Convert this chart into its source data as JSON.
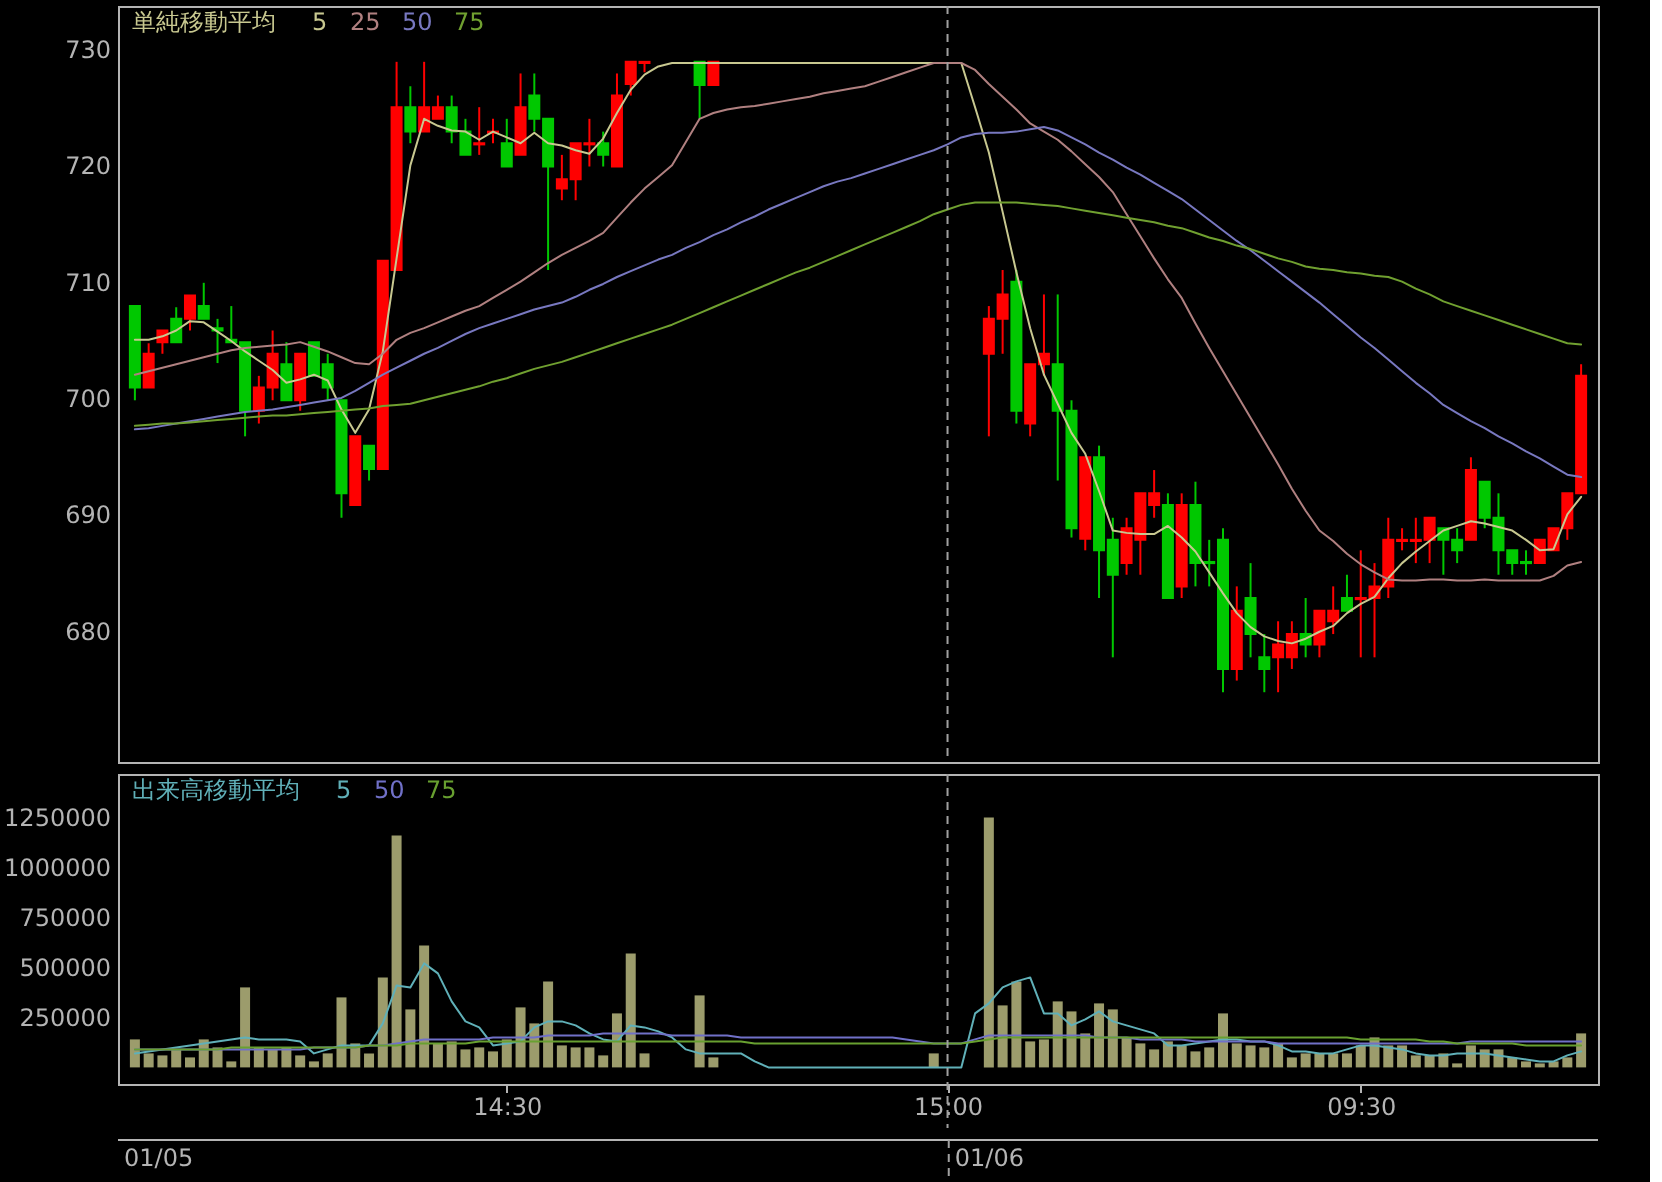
{
  "chart_data": [
    {
      "type": "candlestick",
      "categories": [
        null,
        null,
        null,
        null,
        null,
        null,
        null,
        null,
        null,
        null,
        null,
        null,
        null,
        null,
        null,
        null,
        null,
        null,
        null,
        null,
        null,
        null,
        null,
        null,
        null,
        null,
        null,
        "14:30",
        null,
        null,
        null,
        null,
        null,
        null,
        null,
        null,
        null,
        null,
        null,
        null,
        null,
        null,
        null,
        null,
        null,
        null,
        null,
        null,
        null,
        null,
        null,
        null,
        null,
        null,
        null,
        null,
        null,
        null,
        null,
        "15:00",
        null,
        null,
        null,
        null,
        null,
        null,
        null,
        null,
        null,
        null,
        null,
        null,
        null,
        null,
        null,
        null,
        null,
        null,
        null,
        null,
        null,
        null,
        null,
        null,
        null,
        null,
        null,
        null,
        null,
        "09:30",
        null,
        null,
        null,
        null,
        null,
        null,
        null,
        null,
        null,
        null,
        null,
        null,
        null,
        null,
        null,
        null
      ],
      "ohlc": [
        [
          707.9,
          707.9,
          699.8,
          700.9
        ],
        [
          700.9,
          704.7,
          700.9,
          703.8
        ],
        [
          704.8,
          705.8,
          703.8,
          705.8
        ],
        [
          706.8,
          707.8,
          704.8,
          704.8
        ],
        [
          706.8,
          708.8,
          705.8,
          708.8
        ],
        [
          707.9,
          709.9,
          706.8,
          706.8
        ],
        [
          706.0,
          706.8,
          703.0,
          705.8
        ],
        [
          705.0,
          707.9,
          704.8,
          704.8
        ],
        [
          704.8,
          704.8,
          696.7,
          698.9
        ],
        [
          698.9,
          701.9,
          697.8,
          700.9
        ],
        [
          700.9,
          705.8,
          699.8,
          703.8
        ],
        [
          702.9,
          704.8,
          699.8,
          699.8
        ],
        [
          699.8,
          703.8,
          698.9,
          703.8
        ],
        [
          704.8,
          704.8,
          701.9,
          701.9
        ],
        [
          702.9,
          703.8,
          699.8,
          700.9
        ],
        [
          699.8,
          699.8,
          689.7,
          691.8
        ],
        [
          690.8,
          696.7,
          690.8,
          696.7
        ],
        [
          695.9,
          695.9,
          692.9,
          693.9
        ],
        [
          693.9,
          711.8,
          693.9,
          711.8
        ],
        [
          711.0,
          728.9,
          711.0,
          725.0
        ],
        [
          725.0,
          726.8,
          721.9,
          722.9
        ],
        [
          722.9,
          728.9,
          722.9,
          725.0
        ],
        [
          724.0,
          726.0,
          724.0,
          725.0
        ],
        [
          725.0,
          726.0,
          721.9,
          722.9
        ],
        [
          722.9,
          724.0,
          720.9,
          720.9
        ],
        [
          721.8,
          725.0,
          720.9,
          721.9
        ],
        [
          722.8,
          724.0,
          721.9,
          722.9
        ],
        [
          721.9,
          724.0,
          719.9,
          719.9
        ],
        [
          720.9,
          727.9,
          720.9,
          725.0
        ],
        [
          726.0,
          727.9,
          722.9,
          724.0
        ],
        [
          724.0,
          724.0,
          711.0,
          719.9
        ],
        [
          718.0,
          720.9,
          717.0,
          718.8
        ],
        [
          718.8,
          721.9,
          717.0,
          721.9
        ],
        [
          721.8,
          724.0,
          719.9,
          721.9
        ],
        [
          721.9,
          722.9,
          719.9,
          720.9
        ],
        [
          719.9,
          727.9,
          719.9,
          726.0
        ],
        [
          727.0,
          728.9,
          726.0,
          728.9
        ],
        [
          728.8,
          728.9,
          728.0,
          728.9
        ],
        null,
        null,
        null,
        [
          728.9,
          728.9,
          724.0,
          726.9
        ],
        [
          726.9,
          728.9,
          726.9,
          728.9
        ],
        null,
        null,
        null,
        null,
        null,
        null,
        null,
        null,
        null,
        null,
        null,
        null,
        null,
        null,
        null,
        null,
        null,
        null,
        null,
        [
          703.8,
          707.9,
          696.7,
          706.8
        ],
        [
          706.8,
          711.0,
          703.8,
          708.9
        ],
        [
          710.0,
          711.0,
          697.8,
          698.9
        ],
        [
          697.8,
          702.9,
          696.7,
          702.9
        ],
        [
          702.9,
          708.9,
          701.9,
          703.8
        ],
        [
          702.9,
          708.9,
          692.9,
          698.9
        ],
        [
          698.9,
          699.8,
          688.0,
          688.8
        ],
        [
          687.9,
          694.9,
          686.9,
          694.9
        ],
        [
          694.9,
          695.9,
          682.8,
          686.9
        ],
        [
          687.8,
          689.7,
          677.7,
          684.8
        ],
        [
          685.8,
          689.7,
          684.8,
          688.8
        ],
        [
          687.8,
          691.8,
          684.8,
          691.8
        ],
        [
          690.8,
          693.8,
          689.7,
          691.8
        ],
        [
          690.8,
          691.8,
          682.8,
          682.8
        ],
        [
          683.8,
          691.8,
          682.8,
          690.8
        ],
        [
          690.8,
          692.8,
          683.8,
          685.8
        ],
        [
          685.9,
          687.8,
          683.8,
          685.8
        ],
        [
          687.8,
          688.8,
          674.7,
          676.7
        ],
        [
          676.7,
          683.8,
          675.7,
          681.7
        ],
        [
          682.8,
          685.8,
          677.7,
          679.7
        ],
        [
          677.7,
          679.7,
          674.7,
          676.7
        ],
        [
          677.7,
          680.8,
          674.7,
          678.8
        ],
        [
          677.7,
          680.8,
          676.7,
          679.7
        ],
        [
          679.7,
          682.8,
          677.7,
          678.8
        ],
        [
          678.8,
          681.7,
          677.7,
          681.7
        ],
        [
          680.8,
          683.8,
          679.7,
          681.7
        ],
        [
          682.8,
          684.8,
          681.7,
          681.7
        ],
        [
          682.7,
          686.9,
          677.7,
          682.8
        ],
        [
          682.8,
          685.8,
          677.7,
          683.8
        ],
        [
          683.8,
          689.7,
          682.8,
          687.8
        ],
        [
          687.7,
          688.8,
          686.9,
          687.8
        ],
        [
          687.7,
          689.7,
          685.8,
          687.8
        ],
        [
          687.8,
          689.7,
          685.8,
          689.7
        ],
        [
          688.8,
          688.8,
          684.8,
          687.8
        ],
        [
          687.8,
          688.8,
          685.8,
          686.9
        ],
        [
          687.8,
          694.9,
          687.8,
          693.8
        ],
        [
          692.8,
          692.8,
          688.8,
          689.7
        ],
        [
          689.7,
          691.8,
          684.8,
          686.9
        ],
        [
          686.9,
          686.9,
          684.8,
          685.8
        ],
        [
          685.9,
          686.9,
          684.8,
          685.8
        ],
        [
          685.8,
          687.8,
          685.8,
          687.8
        ],
        [
          686.9,
          688.8,
          686.9,
          688.8
        ],
        [
          688.8,
          691.8,
          687.8,
          691.8
        ],
        [
          691.8,
          702.9,
          691.8,
          701.9
        ]
      ],
      "colors": [
        "#00c800",
        "#ff0000",
        "#ff0000",
        "#00c800",
        "#ff0000",
        "#00c800",
        "#00c800",
        "#00c800",
        "#00c800",
        "#ff0000",
        "#ff0000",
        "#00c800",
        "#ff0000",
        "#00c800",
        "#00c800",
        "#00c800",
        "#ff0000",
        "#00c800",
        "#ff0000",
        "#ff0000",
        "#00c800",
        "#ff0000",
        "#ff0000",
        "#00c800",
        "#00c800",
        "#ff0000",
        "#ff0000",
        "#00c800",
        "#ff0000",
        "#00c800",
        "#00c800",
        "#ff0000",
        "#ff0000",
        "#ff0000",
        "#00c800",
        "#ff0000",
        "#ff0000",
        "#ff0000",
        null,
        null,
        null,
        "#00c800",
        "#ff0000",
        null,
        null,
        null,
        null,
        null,
        null,
        null,
        null,
        null,
        null,
        null,
        null,
        null,
        null,
        null,
        null,
        null,
        null,
        null,
        "#ff0000",
        "#ff0000",
        "#00c800",
        "#ff0000",
        "#ff0000",
        "#00c800",
        "#00c800",
        "#ff0000",
        "#00c800",
        "#00c800",
        "#ff0000",
        "#ff0000",
        "#ff0000",
        "#00c800",
        "#ff0000",
        "#00c800",
        "#00c800",
        "#00c800",
        "#ff0000",
        "#00c800",
        "#00c800",
        "#ff0000",
        "#ff0000",
        "#00c800",
        "#ff0000",
        "#ff0000",
        "#00c800",
        "#ff0000",
        "#ff0000",
        "#ff0000",
        "#ff0000",
        "#ff0000",
        "#ff0000",
        "#00c800",
        "#00c800",
        "#ff0000",
        "#00c800",
        "#00c800",
        "#00c800",
        "#00c800",
        "#ff0000",
        "#ff0000",
        "#ff0000",
        "#ff0000"
      ],
      "series": [
        {
          "name": "5",
          "type": "line",
          "color": "#c8c890",
          "values": [
            705.0,
            705.0,
            705.3,
            705.8,
            706.6,
            706.5,
            705.7,
            704.9,
            704.0,
            703.2,
            702.4,
            701.3,
            701.6,
            702.0,
            701.5,
            699.0,
            697.0,
            699.0,
            704.0,
            712.0,
            720.0,
            724.0,
            723.4,
            723.0,
            722.9,
            722.2,
            722.9,
            722.4,
            721.9,
            722.8,
            721.9,
            721.7,
            721.3,
            721.0,
            722.3,
            724.5,
            726.5,
            727.8,
            728.5,
            728.8,
            728.8,
            728.8,
            728.8,
            728.8,
            728.8,
            728.8,
            728.8,
            728.8,
            728.8,
            728.8,
            728.8,
            728.8,
            728.8,
            728.8,
            728.8,
            728.8,
            728.8,
            728.8,
            728.8,
            728.8,
            728.8,
            725.0,
            721.1,
            716.0,
            710.8,
            706.0,
            702.0,
            699.5,
            697.0,
            695.2,
            692.0,
            688.6,
            688.4,
            688.3,
            688.3,
            689.0,
            688.0,
            686.8,
            685.0,
            683.2,
            681.5,
            680.3,
            679.5,
            679.1,
            678.9,
            679.3,
            679.9,
            680.4,
            681.5,
            682.3,
            682.9,
            684.5,
            685.8,
            686.8,
            687.7,
            688.6,
            689.0,
            689.4,
            689.2,
            688.9,
            688.6,
            687.8,
            686.9,
            687.0,
            690.0,
            691.5
          ]
        },
        {
          "name": "25",
          "type": "line",
          "color": "#b08080",
          "values": [
            702.0,
            702.3,
            702.6,
            702.9,
            703.2,
            703.5,
            703.8,
            704.1,
            704.3,
            704.4,
            704.5,
            704.6,
            704.8,
            704.4,
            704.0,
            703.5,
            703.0,
            702.9,
            703.8,
            705.0,
            705.6,
            706.0,
            706.5,
            707.0,
            707.5,
            707.9,
            708.6,
            709.3,
            710.0,
            710.8,
            711.6,
            712.3,
            712.9,
            713.5,
            714.2,
            715.5,
            716.8,
            718.0,
            719.0,
            720.0,
            722.0,
            724.0,
            724.5,
            724.8,
            725.0,
            725.1,
            725.3,
            725.5,
            725.7,
            725.9,
            726.2,
            726.4,
            726.6,
            726.8,
            727.2,
            727.6,
            728.0,
            728.4,
            728.8,
            728.8,
            728.8,
            728.2,
            727.0,
            725.9,
            724.8,
            723.6,
            722.9,
            722.2,
            721.2,
            720.1,
            719.0,
            717.7,
            715.8,
            713.9,
            712.0,
            710.2,
            708.6,
            706.4,
            704.3,
            702.3,
            700.3,
            698.3,
            696.3,
            694.3,
            692.2,
            690.3,
            688.6,
            687.7,
            686.6,
            685.7,
            685.0,
            684.4,
            684.3,
            684.3,
            684.4,
            684.4,
            684.3,
            684.3,
            684.4,
            684.3,
            684.3,
            684.3,
            684.3,
            684.7,
            685.6,
            685.9
          ]
        },
        {
          "name": "50",
          "type": "line",
          "color": "#7878c0",
          "values": [
            697.3,
            697.4,
            697.6,
            697.8,
            698.0,
            698.2,
            698.4,
            698.6,
            698.8,
            698.9,
            699.0,
            699.2,
            699.4,
            699.6,
            699.8,
            700.0,
            700.6,
            701.3,
            702.0,
            702.6,
            703.2,
            703.8,
            704.3,
            704.9,
            705.5,
            706.0,
            706.4,
            706.8,
            707.2,
            707.6,
            707.9,
            708.2,
            708.7,
            709.3,
            709.8,
            710.4,
            710.9,
            711.4,
            711.9,
            712.3,
            712.9,
            713.4,
            714.0,
            714.5,
            715.1,
            715.6,
            716.2,
            716.7,
            717.2,
            717.7,
            718.2,
            718.6,
            718.9,
            719.3,
            719.7,
            720.1,
            720.5,
            720.9,
            721.3,
            721.8,
            722.4,
            722.7,
            722.8,
            722.8,
            722.9,
            723.1,
            723.3,
            723.0,
            722.4,
            721.8,
            721.1,
            720.5,
            719.8,
            719.2,
            718.5,
            717.8,
            717.1,
            716.2,
            715.3,
            714.4,
            713.5,
            712.7,
            711.8,
            710.9,
            710.0,
            709.1,
            708.2,
            707.2,
            706.2,
            705.2,
            704.3,
            703.3,
            702.3,
            701.3,
            700.4,
            699.4,
            698.7,
            698.0,
            697.4,
            696.7,
            696.1,
            695.4,
            694.8,
            694.1,
            693.4,
            693.2
          ]
        },
        {
          "name": "75",
          "type": "line",
          "color": "#70a030",
          "values": [
            697.6,
            697.7,
            697.8,
            697.8,
            697.9,
            698.0,
            698.1,
            698.2,
            698.3,
            698.4,
            698.5,
            698.5,
            698.6,
            698.7,
            698.8,
            698.9,
            699.0,
            699.1,
            699.3,
            699.4,
            699.5,
            699.8,
            700.1,
            700.4,
            700.7,
            701.0,
            701.4,
            701.7,
            702.1,
            702.5,
            702.8,
            703.1,
            703.5,
            703.9,
            704.3,
            704.7,
            705.1,
            705.5,
            705.9,
            706.3,
            706.8,
            707.3,
            707.8,
            708.3,
            708.8,
            709.3,
            709.8,
            710.3,
            710.8,
            711.2,
            711.7,
            712.2,
            712.7,
            713.2,
            713.7,
            714.2,
            714.7,
            715.2,
            715.8,
            716.2,
            716.6,
            716.8,
            716.8,
            716.8,
            716.8,
            716.7,
            716.6,
            716.5,
            716.3,
            716.1,
            715.9,
            715.7,
            715.5,
            715.3,
            715.1,
            714.8,
            714.6,
            714.2,
            713.8,
            713.5,
            713.1,
            712.8,
            712.4,
            712.0,
            711.7,
            711.3,
            711.1,
            711.0,
            710.8,
            710.7,
            710.5,
            710.4,
            710.0,
            709.4,
            708.9,
            708.3,
            707.9,
            707.5,
            707.1,
            706.7,
            706.3,
            705.9,
            705.5,
            705.1,
            704.7,
            704.6
          ]
        }
      ],
      "ylim": [
        668.7,
        733.7
      ],
      "yticks": [
        680,
        690,
        700,
        710,
        720,
        730
      ],
      "legend": "top left",
      "legend_title": "単純移動平均",
      "tick_labels": "y",
      "ref_lines": [
        {
          "axis": "x",
          "value": "15:00",
          "color": "#a0a0a0",
          "line_style": "dashed"
        }
      ]
    },
    {
      "type": "bar",
      "categories": [
        null,
        null,
        null,
        null,
        null,
        null,
        null,
        null,
        null,
        null,
        null,
        null,
        null,
        null,
        null,
        null,
        null,
        null,
        null,
        null,
        null,
        null,
        null,
        null,
        null,
        null,
        null,
        "14:30",
        null,
        null,
        null,
        null,
        null,
        null,
        null,
        null,
        null,
        null,
        null,
        null,
        null,
        null,
        null,
        null,
        null,
        null,
        null,
        null,
        null,
        null,
        null,
        null,
        null,
        null,
        null,
        null,
        null,
        null,
        null,
        "15:00",
        null,
        null,
        null,
        null,
        null,
        null,
        null,
        null,
        null,
        null,
        null,
        null,
        null,
        null,
        null,
        null,
        null,
        null,
        null,
        null,
        null,
        null,
        null,
        null,
        null,
        null,
        null,
        null,
        null,
        "09:30",
        null,
        null,
        null,
        null,
        null,
        null,
        null,
        null,
        null,
        null,
        null,
        null,
        null,
        null,
        null,
        null
      ],
      "series": [
        {
          "type": "bar",
          "color": "#9c9c6c",
          "values": [
            140000,
            70000,
            60000,
            90000,
            50000,
            140000,
            100000,
            30000,
            400000,
            100000,
            90000,
            100000,
            60000,
            30000,
            70000,
            350000,
            120000,
            70000,
            450000,
            1160000,
            290000,
            610000,
            120000,
            130000,
            90000,
            100000,
            80000,
            140000,
            300000,
            220000,
            430000,
            110000,
            100000,
            100000,
            60000,
            270000,
            570000,
            70000,
            null,
            null,
            null,
            360000,
            50000,
            null,
            null,
            null,
            null,
            null,
            null,
            null,
            null,
            null,
            null,
            null,
            null,
            null,
            null,
            null,
            70000,
            null,
            null,
            null,
            1250000,
            310000,
            430000,
            130000,
            140000,
            330000,
            280000,
            170000,
            320000,
            290000,
            150000,
            120000,
            90000,
            130000,
            110000,
            80000,
            100000,
            270000,
            120000,
            110000,
            100000,
            120000,
            50000,
            70000,
            70000,
            70000,
            70000,
            110000,
            150000,
            110000,
            110000,
            60000,
            60000,
            70000,
            20000,
            110000,
            90000,
            90000,
            50000,
            30000,
            20000,
            30000,
            50000,
            170000
          ]
        },
        {
          "name": "5",
          "type": "line",
          "color": "#60b0b8",
          "values": [
            70000,
            80000,
            90000,
            100000,
            110000,
            120000,
            130000,
            140000,
            150000,
            140000,
            140000,
            140000,
            130000,
            70000,
            90000,
            110000,
            110000,
            110000,
            220000,
            410000,
            400000,
            520000,
            470000,
            330000,
            230000,
            200000,
            110000,
            120000,
            130000,
            200000,
            230000,
            230000,
            210000,
            170000,
            140000,
            130000,
            210000,
            200000,
            180000,
            150000,
            90000,
            70000,
            70000,
            70000,
            70000,
            30000,
            0,
            0,
            0,
            0,
            0,
            0,
            0,
            0,
            0,
            0,
            0,
            0,
            0,
            0,
            0,
            270000,
            320000,
            400000,
            430000,
            450000,
            270000,
            270000,
            210000,
            240000,
            280000,
            230000,
            210000,
            190000,
            170000,
            110000,
            110000,
            120000,
            130000,
            140000,
            140000,
            130000,
            130000,
            110000,
            80000,
            80000,
            70000,
            70000,
            90000,
            110000,
            110000,
            100000,
            90000,
            70000,
            60000,
            60000,
            70000,
            70000,
            70000,
            60000,
            50000,
            40000,
            30000,
            30000,
            60000,
            80000
          ]
        },
        {
          "name": "50",
          "type": "line",
          "color": "#7070c8",
          "values": [
            90000,
            90000,
            90000,
            90000,
            90000,
            90000,
            90000,
            90000,
            90000,
            90000,
            90000,
            90000,
            90000,
            100000,
            100000,
            100000,
            100000,
            110000,
            110000,
            120000,
            130000,
            140000,
            140000,
            140000,
            140000,
            140000,
            150000,
            150000,
            150000,
            150000,
            160000,
            160000,
            160000,
            160000,
            170000,
            170000,
            170000,
            170000,
            170000,
            160000,
            160000,
            160000,
            160000,
            160000,
            150000,
            150000,
            150000,
            150000,
            150000,
            150000,
            150000,
            150000,
            150000,
            150000,
            150000,
            150000,
            140000,
            130000,
            120000,
            120000,
            120000,
            140000,
            160000,
            160000,
            160000,
            160000,
            160000,
            160000,
            160000,
            160000,
            150000,
            150000,
            150000,
            140000,
            140000,
            140000,
            140000,
            130000,
            130000,
            130000,
            130000,
            130000,
            130000,
            120000,
            120000,
            120000,
            120000,
            120000,
            120000,
            120000,
            120000,
            120000,
            120000,
            120000,
            120000,
            120000,
            120000,
            130000,
            130000,
            130000,
            130000,
            130000,
            130000,
            130000,
            130000,
            130000
          ]
        },
        {
          "name": "75",
          "type": "line",
          "color": "#68a030",
          "values": [
            90000,
            90000,
            90000,
            90000,
            90000,
            90000,
            90000,
            100000,
            100000,
            100000,
            100000,
            100000,
            100000,
            100000,
            100000,
            100000,
            100000,
            110000,
            110000,
            110000,
            120000,
            120000,
            120000,
            120000,
            120000,
            130000,
            130000,
            130000,
            130000,
            130000,
            130000,
            130000,
            130000,
            130000,
            130000,
            130000,
            130000,
            130000,
            130000,
            130000,
            130000,
            130000,
            130000,
            130000,
            130000,
            120000,
            120000,
            120000,
            120000,
            120000,
            120000,
            120000,
            120000,
            120000,
            120000,
            120000,
            120000,
            120000,
            120000,
            120000,
            120000,
            130000,
            140000,
            150000,
            150000,
            150000,
            150000,
            150000,
            150000,
            150000,
            150000,
            150000,
            150000,
            150000,
            150000,
            150000,
            150000,
            150000,
            150000,
            150000,
            150000,
            150000,
            150000,
            150000,
            150000,
            150000,
            150000,
            150000,
            150000,
            140000,
            140000,
            140000,
            140000,
            140000,
            130000,
            130000,
            120000,
            120000,
            120000,
            120000,
            120000,
            110000,
            110000,
            110000,
            110000,
            110000
          ]
        }
      ],
      "ylim": [
        -83000,
        1467000
      ],
      "yticks": [
        250000,
        500000,
        750000,
        1000000,
        1250000
      ],
      "legend": "top left",
      "legend_title": "出来高移動平均",
      "ref_lines": [
        {
          "axis": "x",
          "value": "15:00",
          "color": "#a0a0a0",
          "line_style": "dashed"
        }
      ],
      "annotations": [
        "01/05",
        "01/06"
      ]
    }
  ]
}
